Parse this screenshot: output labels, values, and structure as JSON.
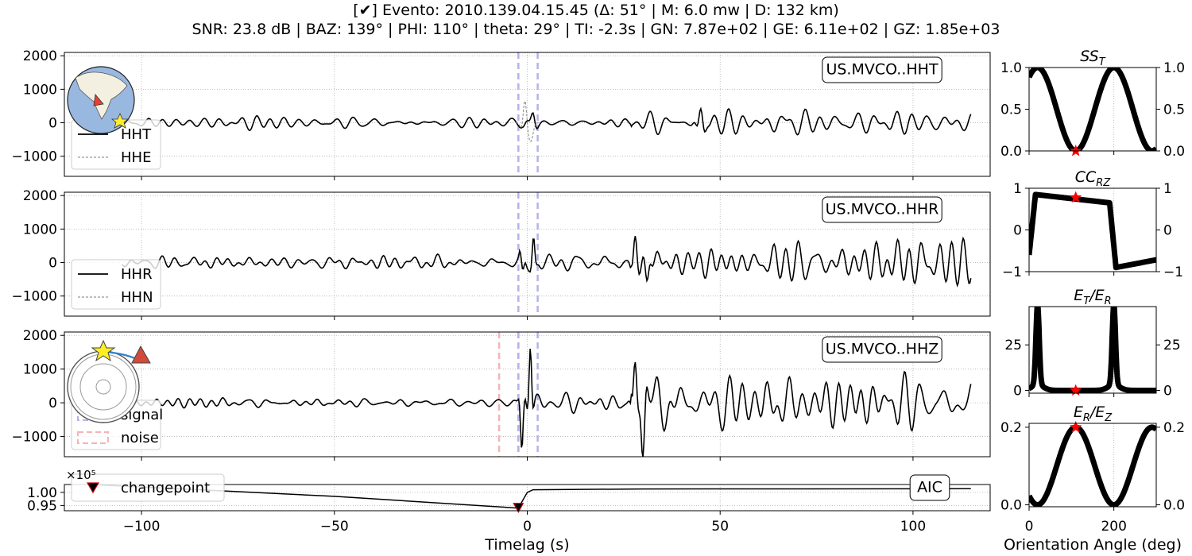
{
  "title_line1": "[✔] Evento: 2010.139.04.15.45 (Δ: 51° | M: 6.0 mw | D: 132 km)",
  "title_line2": "SNR: 23.8 dB | BAZ: 139° | PHI: 110° | theta: 29° | TI: -2.3s | GN: 7.87e+02 | GE: 6.11e+02  | GZ: 1.85e+03",
  "colors": {
    "trace": "#000000",
    "trace_secondary": "#808080",
    "signal_window": "#b3b3ea",
    "noise_window": "#f4b4b8",
    "star": "#ff0000",
    "grid": "#b0b0b0"
  },
  "chart_data": [
    {
      "type": "line",
      "panel": "HHT",
      "xlim": [
        -120,
        120
      ],
      "ylim": [
        -1600,
        2100
      ],
      "yticks": [
        -1000,
        0,
        1000,
        2000
      ],
      "station_label": "US.MVCO..HHT",
      "legend": [
        "HHT",
        "HHE"
      ],
      "signal_window": [
        -2.3,
        2.7
      ],
      "series": [
        {
          "name": "HHT",
          "amplitude_pre": 110,
          "amplitude_post": 480,
          "peak_after_onset": 510
        },
        {
          "name": "HHE",
          "peak": 550,
          "trough": -720
        }
      ],
      "inset": "globe-map"
    },
    {
      "type": "line",
      "panel": "HHR",
      "xlim": [
        -120,
        120
      ],
      "ylim": [
        -1600,
        2100
      ],
      "yticks": [
        -1000,
        0,
        1000,
        2000
      ],
      "station_label": "US.MVCO..HHR",
      "legend": [
        "HHR",
        "HHN"
      ],
      "signal_window": [
        -2.3,
        2.7
      ],
      "series": [
        {
          "name": "HHR",
          "amplitude_pre": 120,
          "peak_after_onset": 790,
          "trough_after_onset": -560,
          "amplitude_post": 750
        }
      ]
    },
    {
      "type": "line",
      "panel": "HHZ",
      "xlim": [
        -120,
        120
      ],
      "ylim": [
        -1600,
        2100
      ],
      "yticks": [
        -1000,
        0,
        1000,
        2000
      ],
      "station_label": "US.MVCO..HHZ",
      "legend": [
        "signal",
        "noise"
      ],
      "signal_window": [
        -2.3,
        2.7
      ],
      "noise_window": [
        -7.3,
        -2.3
      ],
      "series": [
        {
          "name": "HHZ",
          "amplitude_pre": 90,
          "peak_after_onset": 1850,
          "trough_after_onset": -1420,
          "amplitude_post": 1200
        }
      ],
      "inset": "azimuth-circle"
    },
    {
      "type": "line",
      "panel": "AIC",
      "xlim": [
        -120,
        120
      ],
      "ylim": [
        0.93,
        1.03
      ],
      "yticks": [
        0.95,
        1.0
      ],
      "ytick_labels": [
        "0.95",
        "1.00"
      ],
      "scale_label": "×10⁵",
      "station_label": "AIC",
      "legend": [
        "changepoint"
      ],
      "changepoint": -2.3,
      "series": [
        {
          "name": "AIC",
          "points": [
            [
              -120,
              1.035
            ],
            [
              -50,
              0.985
            ],
            [
              -2.3,
              0.94
            ],
            [
              0,
              1.0
            ],
            [
              1.5,
              1.01
            ],
            [
              30,
              1.013
            ],
            [
              115,
              1.014
            ]
          ]
        }
      ],
      "xticks": [
        -100,
        -50,
        0,
        50,
        100
      ],
      "xtick_labels": [
        "−100",
        "−50",
        "0",
        "50",
        "100"
      ],
      "xlabel": "Timelag (s)"
    },
    {
      "type": "scatter",
      "panel": "SS_T",
      "title": "SS",
      "title_sub": "T",
      "xlim": [
        0,
        360
      ],
      "ylim": [
        0,
        1
      ],
      "yticks": [
        0.0,
        0.5,
        1.0
      ],
      "ytick_labels": [
        "0.0",
        "0.5",
        "1.0"
      ],
      "curve": "ss",
      "star": [
        110,
        0.0
      ]
    },
    {
      "type": "scatter",
      "panel": "CC_RZ",
      "title": "CC",
      "title_sub": "RZ",
      "xlim": [
        0,
        360
      ],
      "ylim": [
        -1,
        1
      ],
      "yticks": [
        -1,
        0,
        1
      ],
      "ytick_labels": [
        "−1",
        "0",
        "1"
      ],
      "curve": "cc",
      "star": [
        110,
        0.78
      ]
    },
    {
      "type": "scatter",
      "panel": "ET_ER",
      "title": "E",
      "title_sub": "T",
      "title_mid": "/E",
      "title_sub2": "R",
      "xlim": [
        0,
        360
      ],
      "ylim": [
        -1.5,
        46
      ],
      "yticks": [
        0,
        25
      ],
      "ytick_labels": [
        "0",
        "25"
      ],
      "curve": "et",
      "star": [
        110,
        0.0
      ]
    },
    {
      "type": "scatter",
      "panel": "ER_EZ",
      "title": "E",
      "title_sub": "R",
      "title_mid": "/E",
      "title_sub2": "Z",
      "xlim": [
        0,
        360
      ],
      "ylim": [
        -0.005,
        0.21
      ],
      "yticks": [
        0.0,
        0.2
      ],
      "ytick_labels": [
        "0.0",
        "0.2"
      ],
      "curve": "er",
      "star": [
        110,
        0.2
      ],
      "xticks": [
        0,
        200
      ],
      "xtick_labels": [
        "0",
        "200"
      ],
      "xlabel": "Orientation Angle (deg)"
    }
  ]
}
